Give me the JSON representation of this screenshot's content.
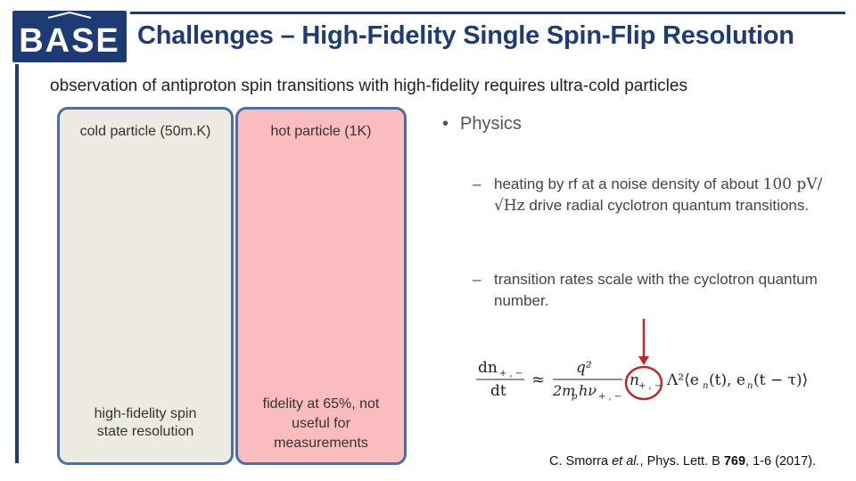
{
  "header": {
    "logo_text": "BASE",
    "title": "Challenges – High-Fidelity Single Spin-Flip Resolution"
  },
  "subtitle": "observation of antiproton spin transitions with high-fidelity requires ultra-cold particles",
  "panels": {
    "cold": {
      "label": "cold particle (50m.K)",
      "result": "high-fidelity spin state resolution"
    },
    "hot": {
      "label": "hot particle (1K)",
      "result": "fidelity at 65%, not useful for measurements"
    }
  },
  "bullets": {
    "main": "Physics",
    "dash": "–",
    "sub1_a": "heating by rf at a noise density of about",
    "sub1_value": "100 pV/√Hz",
    "sub1_b": "drive radial cyclotron quantum transitions.",
    "sub2": "transition rates scale with the cyclotron quantum number."
  },
  "formula": {
    "lhs_num": "dn",
    "lhs_sub": "+ , −",
    "lhs_den": "dt",
    "approx": "≈",
    "rhs_num": "q²",
    "rhs_den": "2m",
    "rhs_den_p": "p",
    "rhs_den_hv": "hν",
    "n": "n",
    "rest": "Λ²⟨e",
    "e_n": "n",
    "t1": "(t), e",
    "t2": "(t − τ)⟩"
  },
  "citation": {
    "authors": "C. Smorra ",
    "etal": "et al.",
    "journal": ", Phys. Lett. B ",
    "volume": "769",
    "pages": ", 1-6 (2017)."
  },
  "colors": {
    "brand": "#1f3b73",
    "cold_panel": "#edeae1",
    "hot_panel": "#fbbcbf",
    "panel_border": "#4a6fa5",
    "highlight": "#c0282c"
  }
}
